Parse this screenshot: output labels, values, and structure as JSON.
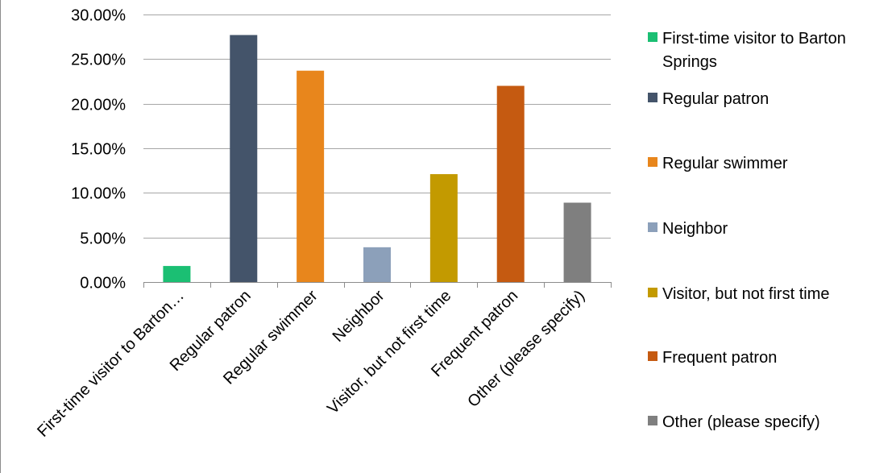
{
  "chart_data": {
    "type": "bar",
    "title": "",
    "xlabel": "",
    "ylabel": "",
    "ylim": [
      0,
      0.3
    ],
    "y_ticks": [
      "0.00%",
      "5.00%",
      "10.00%",
      "15.00%",
      "20.00%",
      "25.00%",
      "30.00%"
    ],
    "grid": true,
    "legend_position": "right",
    "categories": [
      "First-time visitor to Barton…",
      "Regular patron",
      "Regular swimmer",
      "Neighbor",
      "Visitor, but not first time",
      "Frequent patron",
      "Other (please specify)"
    ],
    "values": [
      0.018,
      0.277,
      0.237,
      0.039,
      0.121,
      0.22,
      0.089
    ],
    "colors": [
      "#1bbf73",
      "#44546a",
      "#e8861c",
      "#8ca0ba",
      "#c39a00",
      "#c55a11",
      "#7f7f7f"
    ],
    "legend": [
      [
        "First-time visitor to Barton",
        "Springs"
      ],
      [
        "Regular patron"
      ],
      [
        "Regular swimmer"
      ],
      [
        "Neighbor"
      ],
      [
        "Visitor, but not first time"
      ],
      [
        "Frequent patron"
      ],
      [
        "Other (please specify)"
      ]
    ]
  }
}
